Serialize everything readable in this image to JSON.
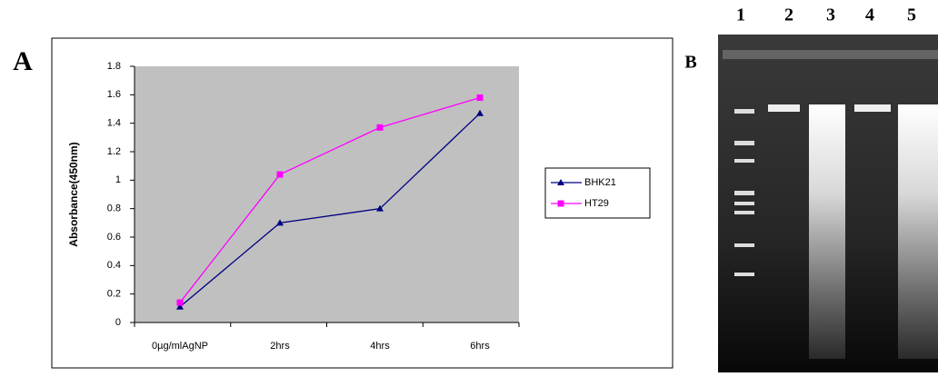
{
  "panel_a": "A",
  "panel_b": "B",
  "chart_data": {
    "type": "line",
    "ylabel": "Absorbance(450nm)",
    "categories": [
      "0µg/mlAgNP",
      "2hrs",
      "4hrs",
      "6hrs"
    ],
    "series": [
      {
        "name": "BHK21",
        "color": "#000080",
        "marker": "triangle",
        "values": [
          0.11,
          0.7,
          0.8,
          1.47
        ]
      },
      {
        "name": "HT29",
        "color": "#ff00ff",
        "marker": "square",
        "values": [
          0.14,
          1.04,
          1.37,
          1.58
        ]
      }
    ],
    "ylim": [
      0,
      1.8
    ],
    "yticks": [
      0,
      0.2,
      0.4,
      0.6,
      0.8,
      1,
      1.2,
      1.4,
      1.6,
      1.8
    ]
  },
  "gel": {
    "lanes": [
      "1",
      "2",
      "3",
      "4",
      "5"
    ]
  }
}
